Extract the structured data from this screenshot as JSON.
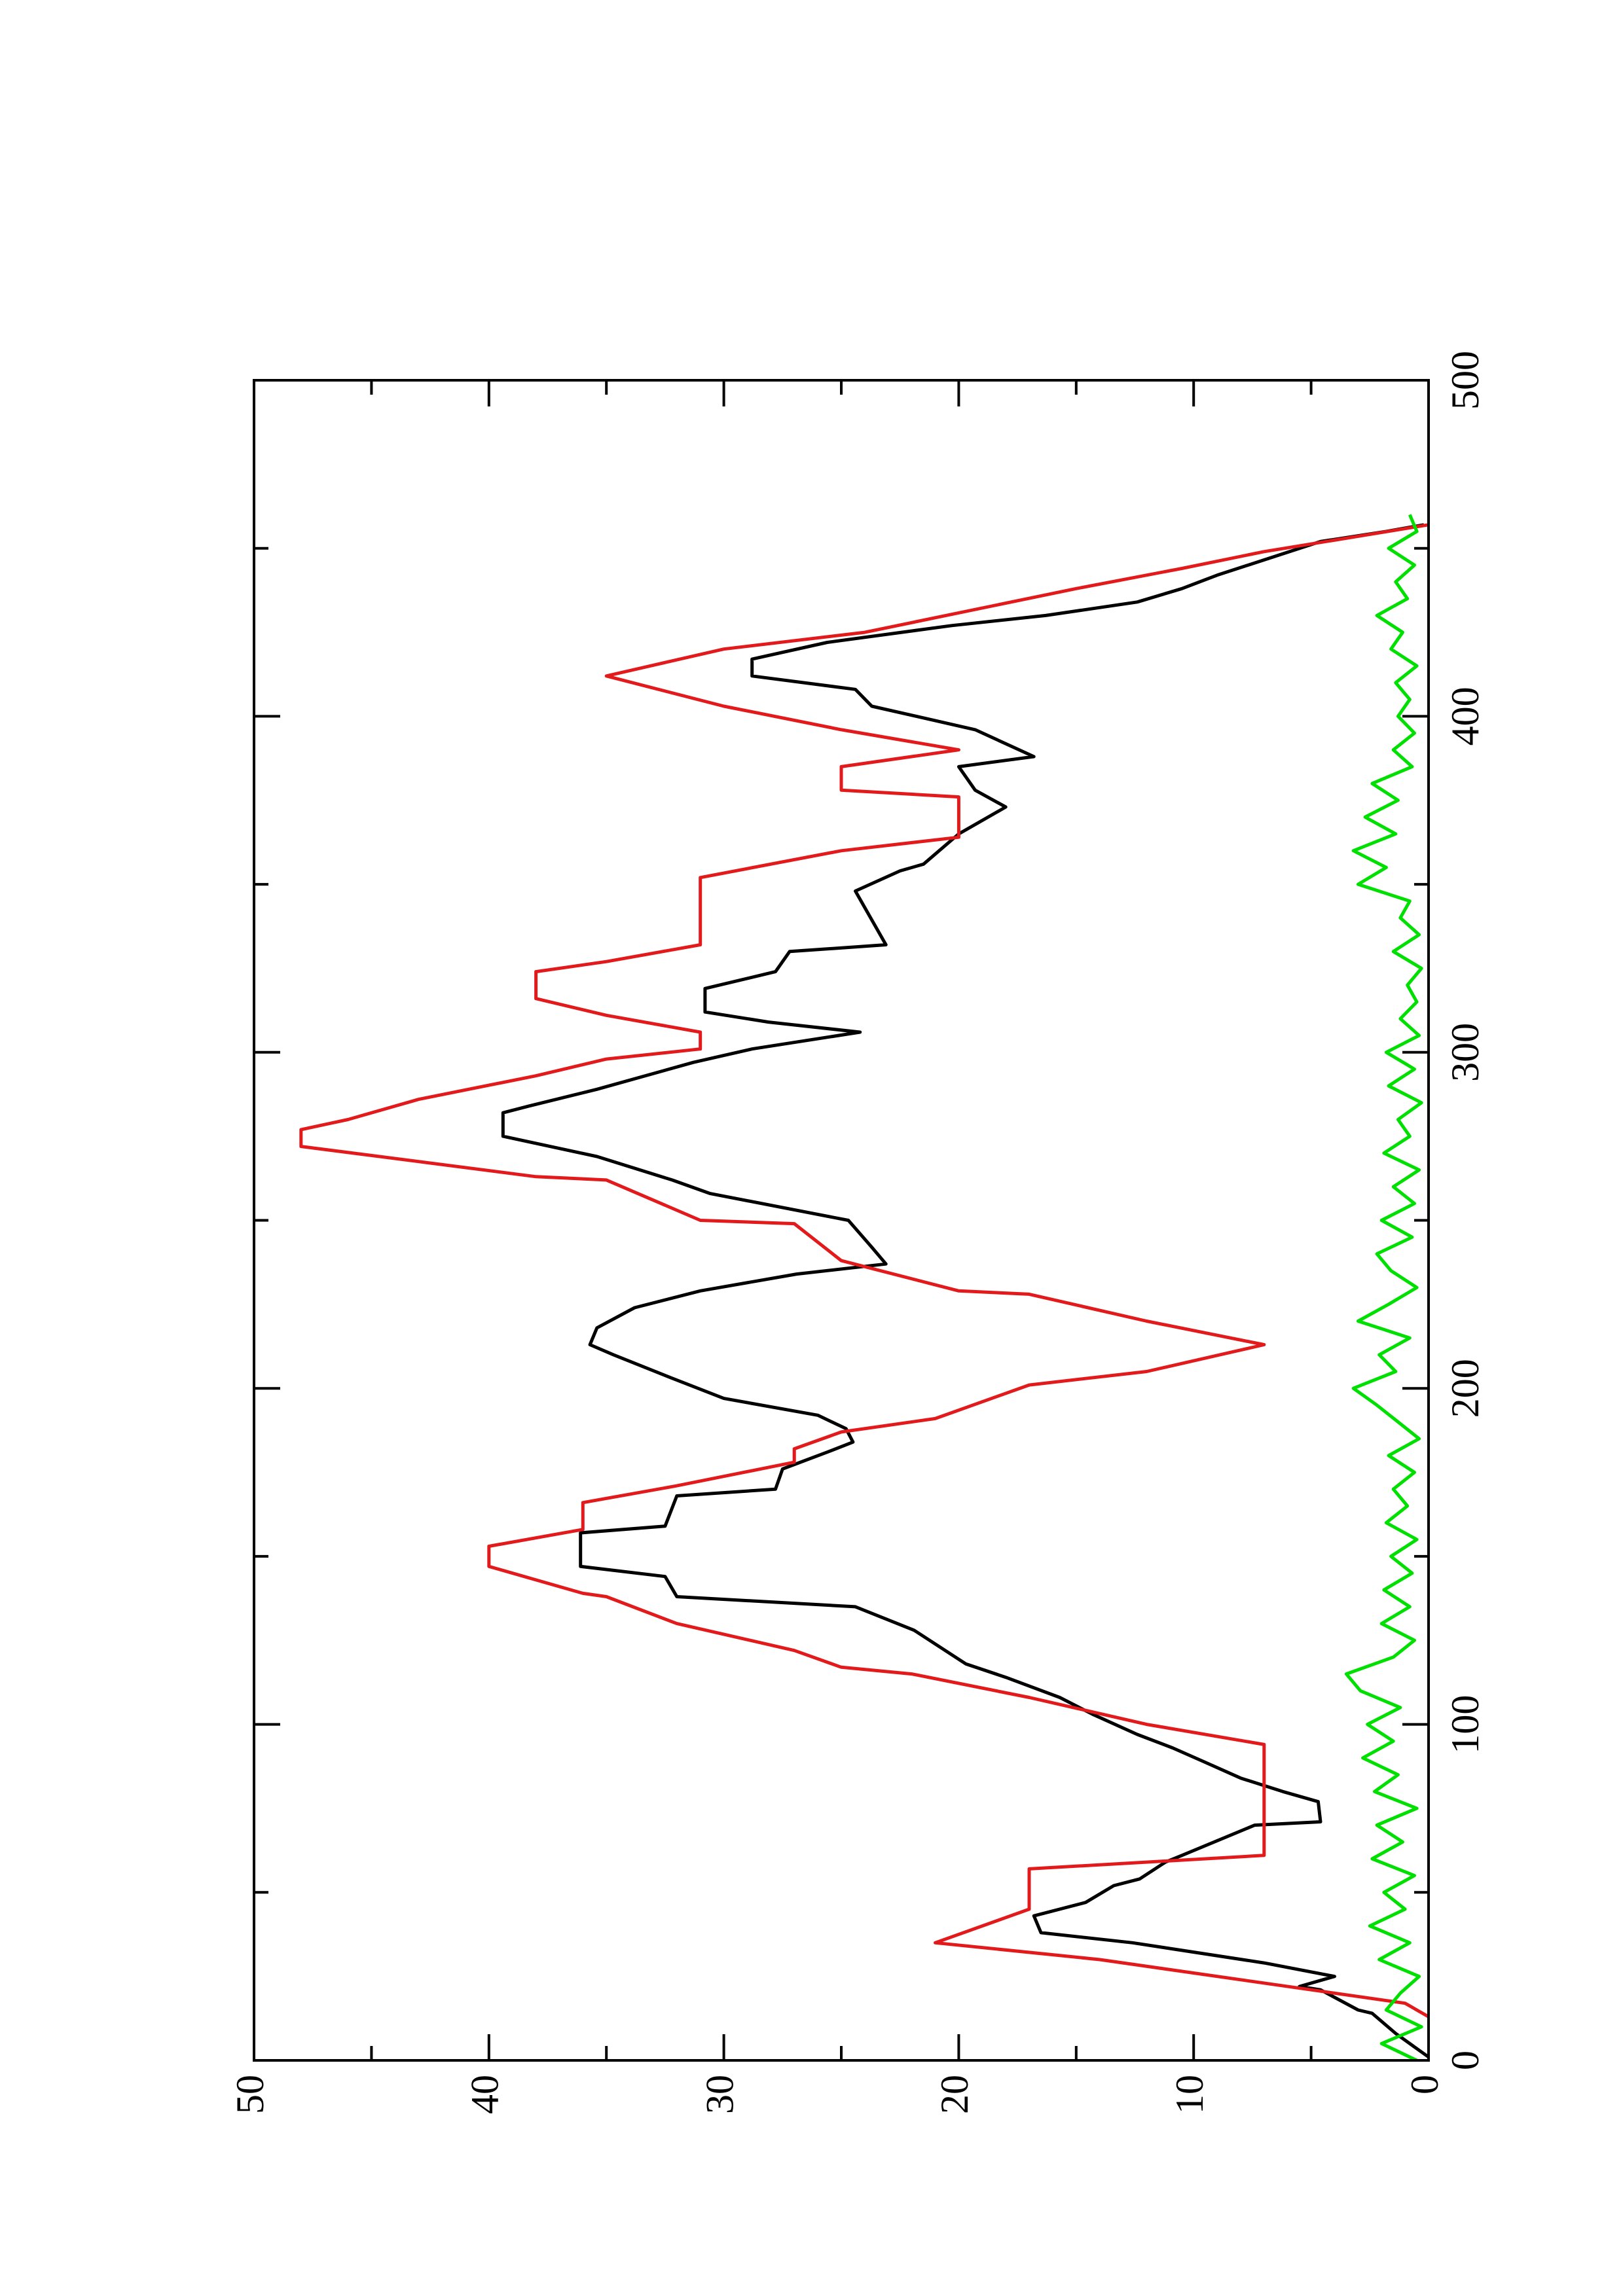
{
  "chart_data": {
    "type": "line",
    "xlim": [
      0,
      500
    ],
    "xticks": [
      0,
      100,
      200,
      300,
      400,
      500
    ],
    "xminorticks": [
      50,
      150,
      250,
      350,
      450
    ],
    "ylim": [
      0,
      50
    ],
    "yticks": [
      0,
      10,
      20,
      30,
      40,
      50
    ],
    "yminorticks": [
      5,
      15,
      25,
      35,
      45
    ],
    "rotation": -90,
    "series": [
      {
        "color": "#000000",
        "x": [
          1,
          8,
          14,
          15,
          21,
          22,
          25,
          29,
          35,
          38,
          43,
          47,
          52,
          54,
          59,
          61,
          70,
          71,
          77,
          80,
          84,
          89,
          93,
          97,
          103,
          108,
          114,
          118,
          128,
          135,
          138,
          144,
          147,
          157,
          159,
          168,
          170,
          176,
          181,
          184,
          188,
          192,
          197,
          203,
          210,
          213,
          218,
          224,
          229,
          234,
          237,
          242,
          250,
          258,
          262,
          269,
          275,
          282,
          284,
          289,
          297,
          301,
          306,
          309,
          312,
          319,
          324,
          330,
          332,
          348,
          354,
          356,
          365,
          373,
          378,
          385,
          388,
          396,
          403,
          408,
          412,
          417,
          422,
          427,
          430,
          434,
          438,
          442,
          447,
          452,
          455,
          457
        ],
        "values": [
          0,
          1.4,
          2.4,
          3,
          4.6,
          5.5,
          4,
          7,
          12.6,
          16.5,
          16.8,
          14.6,
          13.4,
          12.3,
          11.2,
          10.5,
          7.4,
          4.6,
          4.7,
          6.2,
          8,
          9.6,
          10.9,
          12.4,
          14.3,
          15.7,
          18,
          19.7,
          21.9,
          24.4,
          32,
          32.5,
          36.1,
          36.1,
          32.5,
          32,
          27.8,
          27.5,
          25.6,
          24.5,
          24.8,
          26,
          30,
          32.2,
          34.7,
          35.7,
          35.4,
          33.8,
          31,
          26.9,
          23.1,
          23.7,
          24.7,
          30.6,
          32.2,
          35.4,
          39.4,
          39.4,
          38.3,
          35.4,
          31.3,
          28.8,
          24.2,
          28.1,
          30.8,
          30.8,
          27.8,
          27.2,
          23.1,
          24.4,
          22.5,
          21.5,
          20,
          18,
          19.3,
          20,
          16.8,
          19.3,
          23.7,
          24.4,
          28.8,
          28.8,
          25.6,
          20.3,
          16.3,
          12.4,
          10.5,
          9,
          6.8,
          4.6,
          1.8,
          0.2
        ]
      },
      {
        "color": "#e31a1c",
        "x": [
          13,
          17,
          30,
          35,
          45,
          57,
          61,
          94,
          100,
          108,
          115,
          117,
          122,
          130,
          138,
          139,
          147,
          153,
          158,
          166,
          171,
          178,
          182,
          187,
          191,
          201,
          205,
          213,
          220,
          228,
          229,
          238,
          249,
          250,
          262,
          263,
          272,
          277,
          280,
          286,
          293,
          298,
          301,
          306,
          311,
          316,
          324,
          327,
          332,
          352,
          360,
          364,
          376,
          378,
          385,
          390,
          396,
          403,
          412,
          420,
          425,
          438,
          444,
          449,
          457
        ],
        "values": [
          0,
          1,
          14,
          21,
          17,
          17,
          7,
          7,
          12,
          17,
          22,
          25,
          27,
          32,
          35,
          36,
          40,
          40,
          36,
          36,
          32,
          27,
          27,
          25,
          21,
          17,
          12,
          7,
          12,
          17,
          20,
          25,
          27,
          31,
          35,
          38,
          48,
          48,
          46,
          43,
          38,
          35,
          31,
          31,
          35,
          38,
          38,
          35,
          31,
          31,
          25,
          20,
          20,
          25,
          25,
          20,
          25,
          30,
          35,
          30,
          24,
          15,
          10.5,
          7,
          0
        ]
      },
      {
        "color": "#00e000",
        "x": [
          0,
          5,
          10,
          15,
          20,
          25,
          30,
          35,
          40,
          45,
          50,
          55,
          60,
          65,
          70,
          75,
          80,
          85,
          90,
          95,
          100,
          105,
          110,
          115,
          120,
          125,
          130,
          135,
          140,
          145,
          150,
          155,
          160,
          165,
          170,
          175,
          180,
          185,
          190,
          195,
          200,
          205,
          210,
          215,
          220,
          225,
          230,
          235,
          240,
          245,
          250,
          255,
          260,
          265,
          270,
          275,
          280,
          285,
          290,
          295,
          300,
          305,
          310,
          315,
          320,
          325,
          330,
          335,
          340,
          345,
          350,
          355,
          360,
          365,
          370,
          375,
          380,
          385,
          390,
          395,
          400,
          405,
          410,
          415,
          420,
          425,
          430,
          435,
          440,
          445,
          450,
          455,
          460
        ],
        "values": [
          0.5,
          2,
          0.3,
          1.8,
          1.2,
          0.4,
          2.1,
          0.8,
          2.5,
          1,
          1.9,
          0.6,
          2.4,
          1.1,
          2.2,
          0.5,
          2.3,
          1.3,
          2.8,
          1.5,
          2.6,
          1.2,
          2.9,
          3.5,
          1.5,
          0.6,
          2,
          0.8,
          1.9,
          0.7,
          1.6,
          0.5,
          1.8,
          0.9,
          1.5,
          0.6,
          1.7,
          0.4,
          1.3,
          2.2,
          3.2,
          1.4,
          2.1,
          0.8,
          3,
          1.7,
          0.5,
          1.6,
          2.2,
          0.7,
          2,
          0.6,
          1.5,
          0.4,
          1.9,
          0.8,
          1.3,
          0.3,
          1.7,
          0.6,
          1.8,
          0.4,
          1.2,
          0.5,
          0.9,
          0.3,
          1.5,
          0.4,
          1.2,
          0.8,
          3,
          1.8,
          3.2,
          1.4,
          2.7,
          1.3,
          2.4,
          0.7,
          1.5,
          0.6,
          1.3,
          0.8,
          1.4,
          0.5,
          1.6,
          1.1,
          2.2,
          0.9,
          1.4,
          0.6,
          1.7,
          0.5,
          0.8
        ]
      }
    ]
  }
}
